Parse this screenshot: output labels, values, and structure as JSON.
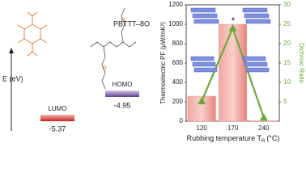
{
  "diagram": {
    "energy_axis_label": "E (eV)",
    "polymer_label": "PBTTT",
    "side_chain_label": "–8O",
    "lumo_label": "LUMO",
    "lumo_value": "-5.37",
    "homo_label": "HOMO",
    "homo_value": "-4.95",
    "plus": "+"
  },
  "chart_data": {
    "type": "bar",
    "categories": [
      "120",
      "170",
      "240"
    ],
    "series": [
      {
        "type": "bar",
        "color": "#ee9a94",
        "values": [
          258,
          1000,
          5
        ]
      },
      {
        "type": "line",
        "color": "#6aaa3a",
        "axis": "y2",
        "values": [
          5.2,
          24,
          1
        ]
      }
    ],
    "ylabel": "Thermoelectric PF (μW/mK²)",
    "y2label": "Dichroic Ratio",
    "xlabel": "Rubbing temperature T",
    "xlabel_subscript": "R",
    "xlabel_unit": "(°C)",
    "ylim": [
      0,
      1200
    ],
    "yticks": [
      0,
      200,
      400,
      600,
      800,
      1000,
      1200
    ],
    "y2lim": [
      0,
      30
    ],
    "y2ticks": [
      5,
      10,
      15,
      20,
      25,
      30
    ]
  }
}
